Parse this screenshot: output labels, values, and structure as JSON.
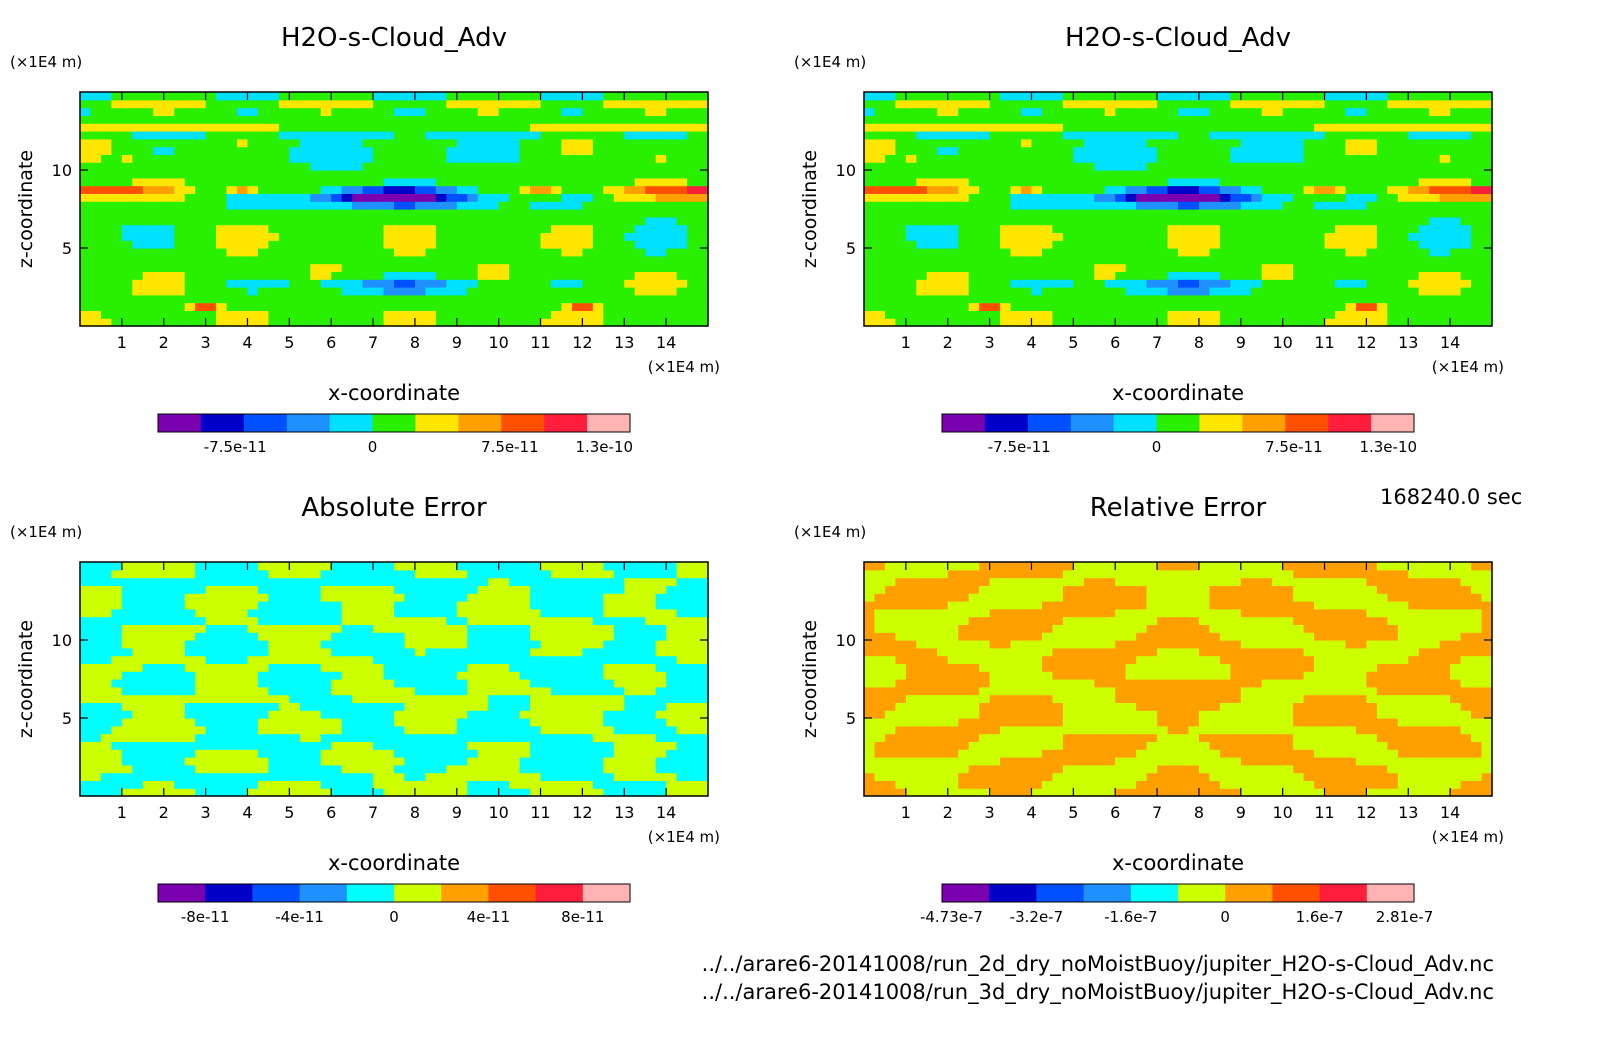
{
  "time_label": "168240.0 sec",
  "files": [
    "../../arare6-20141008/run_2d_dry_noMoistBuoy/jupiter_H2O-s-Cloud_Adv.nc",
    "../../arare6-20141008/run_3d_dry_noMoistBuoy/jupiter_H2O-s-Cloud_Adv.nc"
  ],
  "chart_data": [
    {
      "type": "heatmap",
      "title": "H2O-s-Cloud_Adv",
      "xlabel": "x-coordinate",
      "ylabel": "z-coordinate",
      "x_unit": "(×1E4 m)",
      "y_unit": "(×1E4 m)",
      "xlim": [
        0,
        15
      ],
      "ylim": [
        0,
        15
      ],
      "xticks": [
        1,
        2,
        3,
        4,
        5,
        6,
        7,
        8,
        9,
        10,
        11,
        12,
        13,
        14
      ],
      "yticks": [
        5,
        10
      ],
      "colorbar": {
        "colors": [
          "#7a00b0",
          "#0000c8",
          "#0050ff",
          "#1e90ff",
          "#00e0ff",
          "#28f000",
          "#ffe600",
          "#ffa000",
          "#ff5000",
          "#ff1e3c",
          "#ffb4b4"
        ],
        "tick_labels": [
          "-7.5e-11",
          "0",
          "7.5e-11",
          "1.3e-10"
        ]
      },
      "pattern": "field"
    },
    {
      "type": "heatmap",
      "title": "H2O-s-Cloud_Adv",
      "xlabel": "x-coordinate",
      "ylabel": "z-coordinate",
      "x_unit": "(×1E4 m)",
      "y_unit": "(×1E4 m)",
      "xlim": [
        0,
        15
      ],
      "ylim": [
        0,
        15
      ],
      "xticks": [
        1,
        2,
        3,
        4,
        5,
        6,
        7,
        8,
        9,
        10,
        11,
        12,
        13,
        14
      ],
      "yticks": [
        5,
        10
      ],
      "colorbar": {
        "colors": [
          "#7a00b0",
          "#0000c8",
          "#0050ff",
          "#1e90ff",
          "#00e0ff",
          "#28f000",
          "#ffe600",
          "#ffa000",
          "#ff5000",
          "#ff1e3c",
          "#ffb4b4"
        ],
        "tick_labels": [
          "-7.5e-11",
          "0",
          "7.5e-11",
          "1.3e-10"
        ]
      },
      "pattern": "field"
    },
    {
      "type": "heatmap",
      "title": "Absolute Error",
      "xlabel": "x-coordinate",
      "ylabel": "z-coordinate",
      "x_unit": "(×1E4 m)",
      "y_unit": "(×1E4 m)",
      "xlim": [
        0,
        15
      ],
      "ylim": [
        0,
        15
      ],
      "xticks": [
        1,
        2,
        3,
        4,
        5,
        6,
        7,
        8,
        9,
        10,
        11,
        12,
        13,
        14
      ],
      "yticks": [
        5,
        10
      ],
      "colorbar": {
        "colors": [
          "#7a00b0",
          "#0000c8",
          "#0050ff",
          "#1e90ff",
          "#00ffff",
          "#ccff00",
          "#ffa000",
          "#ff5000",
          "#ff1e3c",
          "#ffb4b4"
        ],
        "tick_labels": [
          "-8e-11",
          "-4e-11",
          "0",
          "4e-11",
          "8e-11"
        ]
      },
      "pattern": "abs"
    },
    {
      "type": "heatmap",
      "title": "Relative Error",
      "xlabel": "x-coordinate",
      "ylabel": "z-coordinate",
      "x_unit": "(×1E4 m)",
      "y_unit": "(×1E4 m)",
      "xlim": [
        0,
        15
      ],
      "ylim": [
        0,
        15
      ],
      "xticks": [
        1,
        2,
        3,
        4,
        5,
        6,
        7,
        8,
        9,
        10,
        11,
        12,
        13,
        14
      ],
      "yticks": [
        5,
        10
      ],
      "colorbar": {
        "colors": [
          "#7a00b0",
          "#0000c8",
          "#0050ff",
          "#1e90ff",
          "#00ffff",
          "#ccff00",
          "#ffa000",
          "#ff5000",
          "#ff1e3c",
          "#ffb4b4"
        ],
        "tick_labels": [
          "-4.73e-7",
          "-3.2e-7",
          "-1.6e-7",
          "0",
          "1.6e-7",
          "2.81e-7"
        ]
      },
      "pattern": "rel"
    }
  ]
}
